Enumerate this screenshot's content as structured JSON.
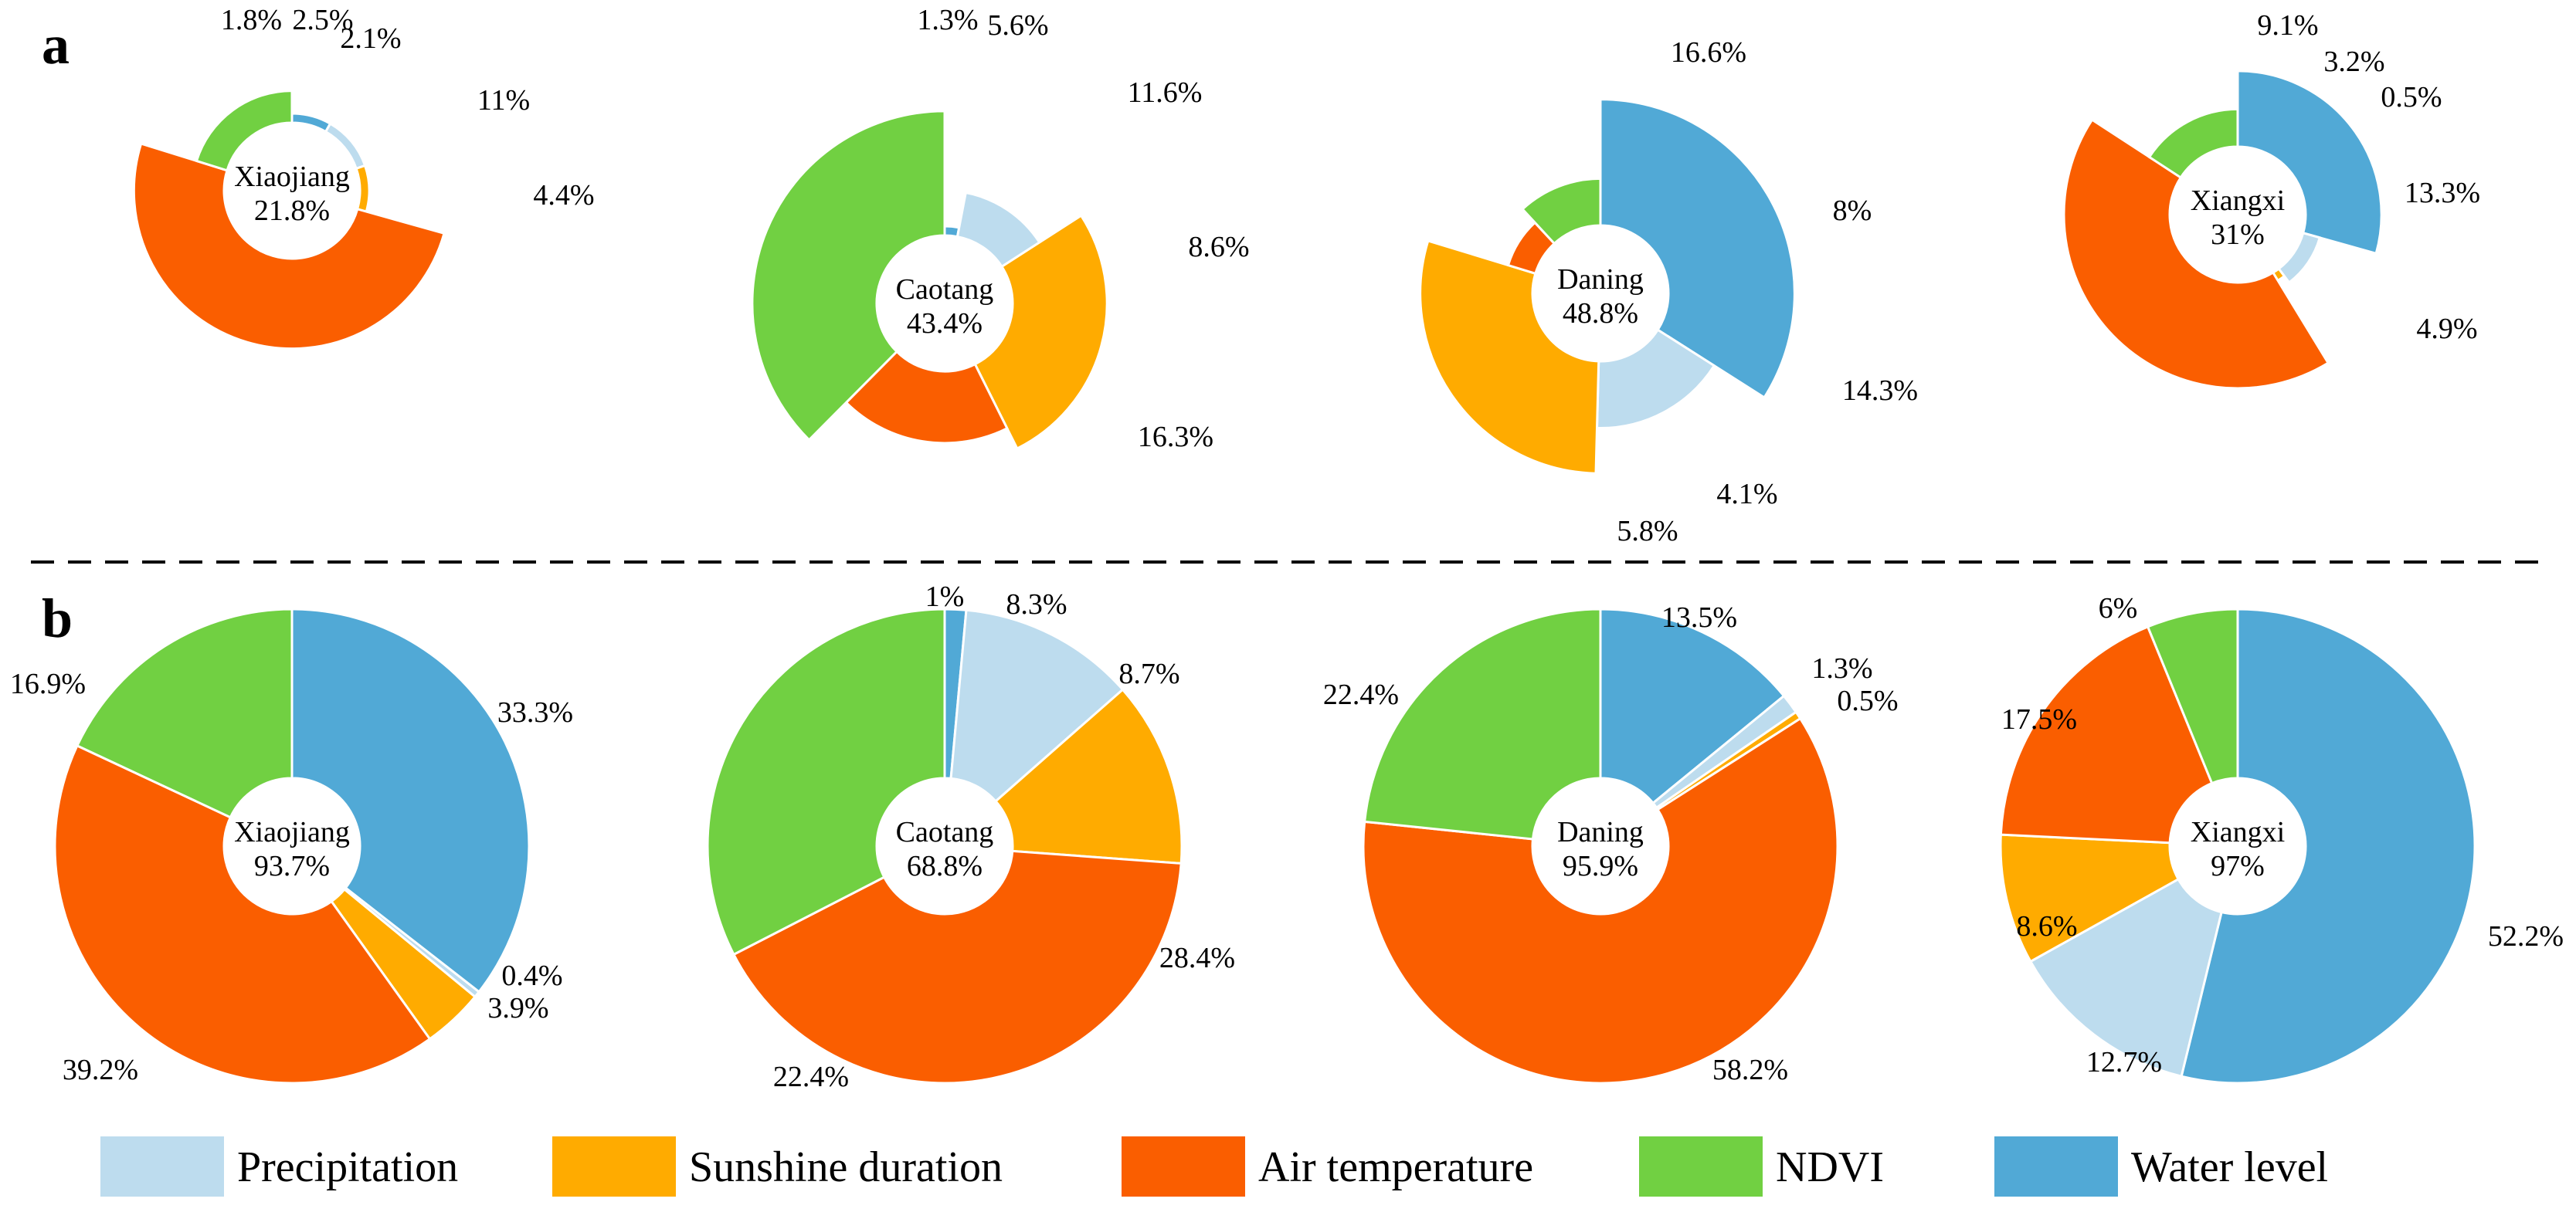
{
  "panel_labels": [
    "a",
    "b"
  ],
  "categories": [
    "Precipitation",
    "Sunshine duration",
    "Air temperature",
    "NDVI",
    "Water level"
  ],
  "colors": {
    "Precipitation": "#bddcee",
    "Sunshine duration": "#ffab00",
    "Air temperature": "#fa5e00",
    "NDVI": "#71d042",
    "Water level": "#51a9d6"
  },
  "legend": {
    "items": [
      {
        "label": "Precipitation",
        "color": "#bddcee"
      },
      {
        "label": "Sunshine duration",
        "color": "#ffab00"
      },
      {
        "label": "Air temperature",
        "color": "#fa5e00"
      },
      {
        "label": "NDVI",
        "color": "#71d042"
      },
      {
        "label": "Water level",
        "color": "#51a9d6"
      }
    ]
  },
  "chart_data": [
    {
      "type": "pie",
      "panel": "a",
      "site": "Xiaojiang",
      "total_label": "21.8%",
      "slices": [
        {
          "category": "Water level",
          "value": 1.8,
          "label": "1.8%"
        },
        {
          "category": "Precipitation",
          "value": 2.5,
          "label": "2.5%"
        },
        {
          "category": "Sunshine duration",
          "value": 2.1,
          "label": "2.1%"
        },
        {
          "category": "Air temperature",
          "value": 11,
          "label": "11%"
        },
        {
          "category": "NDVI",
          "value": 4.4,
          "label": "4.4%"
        }
      ]
    },
    {
      "type": "pie",
      "panel": "a",
      "site": "Caotang",
      "total_label": "43.4%",
      "slices": [
        {
          "category": "Water level",
          "value": 1.3,
          "label": "1.3%"
        },
        {
          "category": "Precipitation",
          "value": 5.6,
          "label": "5.6%"
        },
        {
          "category": "Sunshine duration",
          "value": 11.6,
          "label": "11.6%"
        },
        {
          "category": "Air temperature",
          "value": 8.6,
          "label": "8.6%"
        },
        {
          "category": "NDVI",
          "value": 16.3,
          "label": "16.3%"
        }
      ]
    },
    {
      "type": "pie",
      "panel": "a",
      "site": "Daning",
      "total_label": "48.8%",
      "slices": [
        {
          "category": "Water level",
          "value": 16.6,
          "label": "16.6%"
        },
        {
          "category": "Precipitation",
          "value": 8,
          "label": "8%"
        },
        {
          "category": "Sunshine duration",
          "value": 14.3,
          "label": "14.3%"
        },
        {
          "category": "Air temperature",
          "value": 4.1,
          "label": "4.1%"
        },
        {
          "category": "NDVI",
          "value": 5.8,
          "label": "5.8%"
        }
      ]
    },
    {
      "type": "pie",
      "panel": "a",
      "site": "Xiangxi",
      "total_label": "31%",
      "slices": [
        {
          "category": "Water level",
          "value": 9.1,
          "label": "9.1%"
        },
        {
          "category": "Precipitation",
          "value": 3.2,
          "label": "3.2%"
        },
        {
          "category": "Sunshine duration",
          "value": 0.5,
          "label": "0.5%"
        },
        {
          "category": "Air temperature",
          "value": 13.3,
          "label": "13.3%"
        },
        {
          "category": "NDVI",
          "value": 4.9,
          "label": "4.9%"
        }
      ]
    },
    {
      "type": "pie",
      "panel": "b",
      "site": "Xiaojiang",
      "total_label": "93.7%",
      "slices": [
        {
          "category": "Water level",
          "value": 33.3,
          "label": "33.3%"
        },
        {
          "category": "Precipitation",
          "value": 0.4,
          "label": "0.4%"
        },
        {
          "category": "Sunshine duration",
          "value": 3.9,
          "label": "3.9%"
        },
        {
          "category": "Air temperature",
          "value": 39.2,
          "label": "39.2%"
        },
        {
          "category": "NDVI",
          "value": 16.9,
          "label": "16.9%"
        }
      ]
    },
    {
      "type": "pie",
      "panel": "b",
      "site": "Caotang",
      "total_label": "68.8%",
      "slices": [
        {
          "category": "Water level",
          "value": 1,
          "label": "1%"
        },
        {
          "category": "Precipitation",
          "value": 8.3,
          "label": "8.3%"
        },
        {
          "category": "Sunshine duration",
          "value": 8.7,
          "label": "8.7%"
        },
        {
          "category": "Air temperature",
          "value": 28.4,
          "label": "28.4%"
        },
        {
          "category": "NDVI",
          "value": 22.4,
          "label": "22.4%"
        }
      ]
    },
    {
      "type": "pie",
      "panel": "b",
      "site": "Daning",
      "total_label": "95.9%",
      "slices": [
        {
          "category": "Water level",
          "value": 13.5,
          "label": "13.5%"
        },
        {
          "category": "Precipitation",
          "value": 1.3,
          "label": "1.3%"
        },
        {
          "category": "Sunshine duration",
          "value": 0.5,
          "label": "0.5%"
        },
        {
          "category": "Air temperature",
          "value": 58.2,
          "label": "58.2%"
        },
        {
          "category": "NDVI",
          "value": 22.4,
          "label": "22.4%"
        }
      ]
    },
    {
      "type": "pie",
      "panel": "b",
      "site": "Xiangxi",
      "total_label": "97%",
      "slices": [
        {
          "category": "Water level",
          "value": 52.2,
          "label": "52.2%"
        },
        {
          "category": "Precipitation",
          "value": 12.7,
          "label": "12.7%"
        },
        {
          "category": "Sunshine duration",
          "value": 8.6,
          "label": "8.6%"
        },
        {
          "category": "Air temperature",
          "value": 17.5,
          "label": "17.5%"
        },
        {
          "category": "NDVI",
          "value": 6,
          "label": "6%"
        }
      ]
    }
  ]
}
